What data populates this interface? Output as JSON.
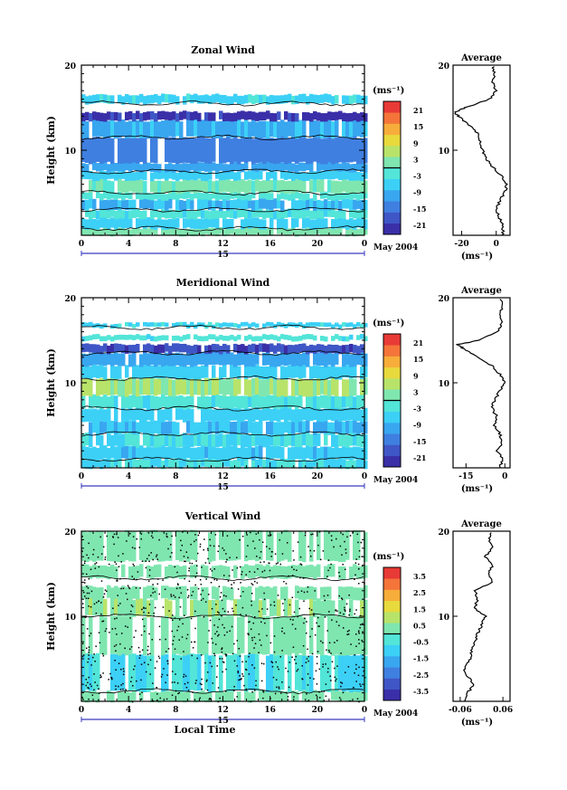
{
  "common": {
    "ylabel": "Height (km)",
    "colorbar_unit": "(ms⁻¹)",
    "average_title": "Average",
    "date_label": "May 2004",
    "day_label": "15",
    "xlabel": "Local Time",
    "xticks": [
      "0",
      "4",
      "8",
      "12",
      "16",
      "20",
      "0"
    ],
    "yticks": [
      "10",
      "20"
    ]
  },
  "colormap": [
    "#3a2fa8",
    "#3f56c6",
    "#3f7fe0",
    "#39a6f0",
    "#3cd0f6",
    "#52e5d8",
    "#7fe6b0",
    "#b8e36a",
    "#e8d93d",
    "#f7ad3a",
    "#f4743a",
    "#e83a36"
  ],
  "chart_data": [
    {
      "type": "heatmap",
      "title": "Zonal Wind",
      "xlabel": "",
      "ylabel": "Height (km)",
      "xlim": [
        0,
        24
      ],
      "ylim": [
        0,
        20
      ],
      "colorbar": {
        "range": [
          -24,
          24
        ],
        "tick_labels": [
          "21",
          "15",
          "9",
          "3",
          "-3",
          "-9",
          "-15",
          "-21"
        ]
      },
      "layers": [
        {
          "z0": 0.0,
          "z1": 0.8,
          "value": 2
        },
        {
          "z0": 0.8,
          "z1": 2.0,
          "value": -6
        },
        {
          "z0": 2.0,
          "z1": 3.0,
          "value": -3
        },
        {
          "z0": 3.0,
          "z1": 4.2,
          "value": -8
        },
        {
          "z0": 4.2,
          "z1": 5.0,
          "value": -2
        },
        {
          "z0": 5.0,
          "z1": 6.5,
          "value": 1
        },
        {
          "z0": 6.5,
          "z1": 7.5,
          "value": -6
        },
        {
          "z0": 7.5,
          "z1": 8.5,
          "value": -10
        },
        {
          "z0": 8.5,
          "z1": 11.5,
          "value": -14
        },
        {
          "z0": 11.5,
          "z1": 13.5,
          "value": -9
        },
        {
          "z0": 13.5,
          "z1": 14.5,
          "value": -21
        },
        {
          "z0": 15.5,
          "z1": 16.5,
          "value": -5
        }
      ],
      "average_profile": {
        "xlim": [
          -25,
          8
        ],
        "xticks": [
          "-20",
          "0"
        ],
        "xlabel": "(ms⁻¹)",
        "height": [
          0.0,
          1.0,
          2.0,
          3.0,
          4.0,
          5.0,
          6.0,
          7.0,
          8.0,
          9.0,
          10.0,
          11.0,
          12.0,
          13.0,
          14.0,
          14.5,
          15.0,
          16.0,
          17.0,
          18.0,
          19.0,
          20.0
        ],
        "value": [
          4,
          4,
          2,
          0,
          2,
          5,
          6,
          3,
          -2,
          -6,
          -8,
          -9,
          -11,
          -16,
          -22,
          -24,
          -18,
          -4,
          0,
          -2,
          -1,
          -2
        ]
      }
    },
    {
      "type": "heatmap",
      "title": "Meridional Wind",
      "xlabel": "",
      "ylabel": "Height (km)",
      "xlim": [
        0,
        24
      ],
      "ylim": [
        0,
        20
      ],
      "colorbar": {
        "range": [
          -24,
          24
        ],
        "tick_labels": [
          "21",
          "15",
          "9",
          "3",
          "-3",
          "-9",
          "-15",
          "-21"
        ]
      },
      "layers": [
        {
          "z0": 0.0,
          "z1": 1.0,
          "value": -4
        },
        {
          "z0": 1.0,
          "z1": 2.5,
          "value": -7
        },
        {
          "z0": 2.5,
          "z1": 4.0,
          "value": -4
        },
        {
          "z0": 4.0,
          "z1": 5.5,
          "value": -8
        },
        {
          "z0": 5.5,
          "z1": 7.0,
          "value": -6
        },
        {
          "z0": 7.0,
          "z1": 8.5,
          "value": -3
        },
        {
          "z0": 8.5,
          "z1": 10.5,
          "value": 4
        },
        {
          "z0": 10.5,
          "z1": 12.0,
          "value": -6
        },
        {
          "z0": 12.0,
          "z1": 13.5,
          "value": -10
        },
        {
          "z0": 13.5,
          "z1": 14.5,
          "value": -19
        },
        {
          "z0": 15.0,
          "z1": 15.6,
          "value": -3
        },
        {
          "z0": 16.5,
          "z1": 17.0,
          "value": -5
        }
      ],
      "average_profile": {
        "xlim": [
          -20,
          2
        ],
        "xticks": [
          "-15",
          "0"
        ],
        "xlabel": "(ms⁻¹)",
        "height": [
          0.0,
          1.0,
          2.0,
          3.0,
          4.0,
          5.0,
          6.0,
          7.0,
          8.0,
          9.0,
          10.0,
          11.0,
          12.0,
          13.0,
          14.0,
          14.5,
          15.0,
          16.0,
          17.0,
          18.0,
          19.0,
          20.0
        ],
        "value": [
          -2,
          -1,
          -3,
          -1,
          -2,
          -4,
          -3,
          -5,
          -4,
          -2,
          0,
          -2,
          -5,
          -10,
          -16,
          -18,
          -10,
          -3,
          -1,
          -2,
          -1,
          -2
        ]
      }
    },
    {
      "type": "heatmap",
      "title": "Vertical Wind",
      "xlabel": "Local Time",
      "ylabel": "Height (km)",
      "xlim": [
        0,
        24
      ],
      "ylim": [
        0,
        20
      ],
      "colorbar": {
        "range": [
          -4,
          4
        ],
        "tick_labels": [
          "3.5",
          "2.5",
          "1.5",
          "0.5",
          "-0.5",
          "-1.5",
          "-2.5",
          "-3.5"
        ]
      },
      "layers": [
        {
          "z0": 0.0,
          "z1": 1.2,
          "value": 0.3
        },
        {
          "z0": 1.2,
          "z1": 5.5,
          "value": -0.6
        },
        {
          "z0": 5.5,
          "z1": 10.0,
          "value": 0.3
        },
        {
          "z0": 10.0,
          "z1": 12.0,
          "value": 0.6
        },
        {
          "z0": 12.0,
          "z1": 13.5,
          "value": 0.3
        },
        {
          "z0": 14.5,
          "z1": 16.0,
          "value": 0.4
        },
        {
          "z0": 16.5,
          "z1": 20.0,
          "value": 0.3
        }
      ],
      "average_profile": {
        "xlim": [
          -0.08,
          0.08
        ],
        "xticks": [
          "-0.06",
          "0.06"
        ],
        "xlabel": "(ms⁻¹)",
        "height": [
          0.0,
          1.0,
          2.0,
          3.0,
          4.0,
          5.0,
          6.0,
          7.0,
          8.0,
          9.0,
          10.0,
          11.0,
          12.0,
          13.0,
          14.0,
          15.0,
          16.0,
          17.0,
          18.0,
          19.0,
          20.0
        ],
        "value": [
          -0.05,
          -0.04,
          -0.02,
          -0.04,
          -0.05,
          -0.03,
          -0.03,
          -0.02,
          -0.01,
          0.0,
          0.01,
          -0.02,
          -0.01,
          -0.02,
          0.03,
          0.02,
          0.03,
          0.01,
          0.03,
          0.02,
          0.03
        ]
      }
    }
  ]
}
